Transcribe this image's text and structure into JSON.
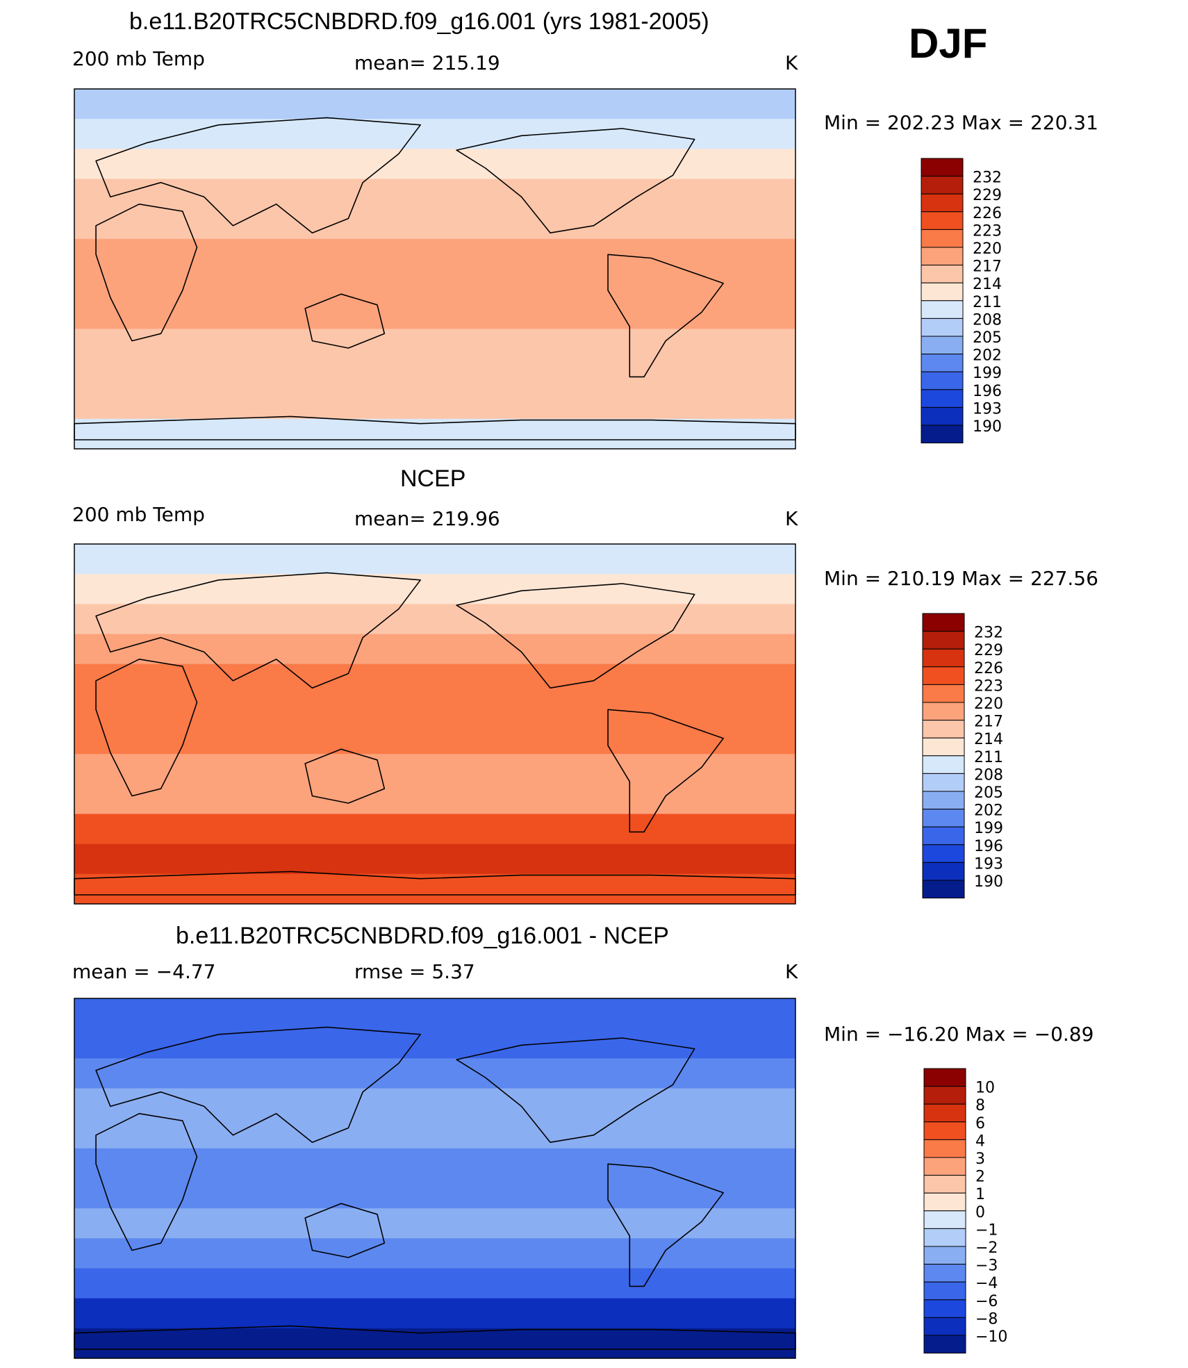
{
  "season": "DJF",
  "panels": [
    {
      "title": "b.e11.B20TRC5CNBDRD.f09_g16.001 (yrs 1981-2005)",
      "left_label": "200 mb Temp",
      "center_label": "mean=  215.19",
      "units": "K",
      "minmax": "Min  =  202.23  Max  =  220.31"
    },
    {
      "title": "NCEP",
      "left_label": "200 mb Temp",
      "center_label": "mean=  219.96",
      "units": "K",
      "minmax": "Min  =  210.19  Max  =  227.56"
    },
    {
      "title": "b.e11.B20TRC5CNBDRD.f09_g16.001 - NCEP",
      "left_label": "mean  =    −4.77",
      "center_label": "rmse  =      5.37",
      "units": "K",
      "minmax": "Min  =  −16.20  Max  =    −0.89"
    }
  ],
  "chart_data": [
    {
      "type": "heatmap",
      "title": "b.e11.B20TRC5CNBDRD.f09_g16.001 (yrs 1981-2005)",
      "variable": "200 mb Temp",
      "units": "K",
      "mean": 215.19,
      "min": 202.23,
      "max": 220.31,
      "colorbar_levels": [
        "232",
        "229",
        "226",
        "223",
        "220",
        "217",
        "214",
        "211",
        "208",
        "205",
        "202",
        "199",
        "196",
        "193",
        "190"
      ],
      "colorbar_colors": [
        "#8b0000",
        "#b41e0a",
        "#d73310",
        "#f05020",
        "#fa7a48",
        "#fca37c",
        "#fcc6aa",
        "#fde6d4",
        "#d7e8fb",
        "#b2cdf8",
        "#8aaef2",
        "#5d88ef",
        "#3a66ea",
        "#1d48de",
        "#0c2fbe",
        "#041c8c"
      ],
      "zonal_band_values": [
        206,
        209,
        213,
        216,
        216,
        217,
        218,
        217,
        216,
        215,
        214,
        210
      ]
    },
    {
      "type": "heatmap",
      "title": "NCEP",
      "variable": "200 mb Temp",
      "units": "K",
      "mean": 219.96,
      "min": 210.19,
      "max": 227.56,
      "colorbar_levels": [
        "232",
        "229",
        "226",
        "223",
        "220",
        "217",
        "214",
        "211",
        "208",
        "205",
        "202",
        "199",
        "196",
        "193",
        "190"
      ],
      "colorbar_colors": [
        "#8b0000",
        "#b41e0a",
        "#d73310",
        "#f05020",
        "#fa7a48",
        "#fca37c",
        "#fcc6aa",
        "#fde6d4",
        "#d7e8fb",
        "#b2cdf8",
        "#8aaef2",
        "#5d88ef",
        "#3a66ea",
        "#1d48de",
        "#0c2fbe",
        "#041c8c"
      ],
      "zonal_band_values": [
        210,
        212,
        216,
        219,
        220,
        221,
        221,
        219,
        218,
        224,
        226,
        225
      ]
    },
    {
      "type": "heatmap",
      "title": "b.e11.B20TRC5CNBDRD.f09_g16.001 - NCEP",
      "units": "K",
      "mean": -4.77,
      "rmse": 5.37,
      "min": -16.2,
      "max": -0.89,
      "colorbar_levels": [
        "10",
        "8",
        "6",
        "4",
        "3",
        "2",
        "1",
        "0",
        "−1",
        "−2",
        "−3",
        "−4",
        "−6",
        "−8",
        "−10"
      ],
      "colorbar_colors": [
        "#8b0000",
        "#b41e0a",
        "#d73310",
        "#f05020",
        "#fa7a48",
        "#fca37c",
        "#fcc6aa",
        "#fde6d4",
        "#d7e8fb",
        "#b2cdf8",
        "#8aaef2",
        "#5d88ef",
        "#3a66ea",
        "#1d48de",
        "#0c2fbe",
        "#041c8c"
      ],
      "zonal_band_values": [
        -5,
        -5,
        -3.5,
        -3,
        -3,
        -4,
        -4,
        -3,
        -3.5,
        -6,
        -9,
        -11
      ]
    }
  ]
}
